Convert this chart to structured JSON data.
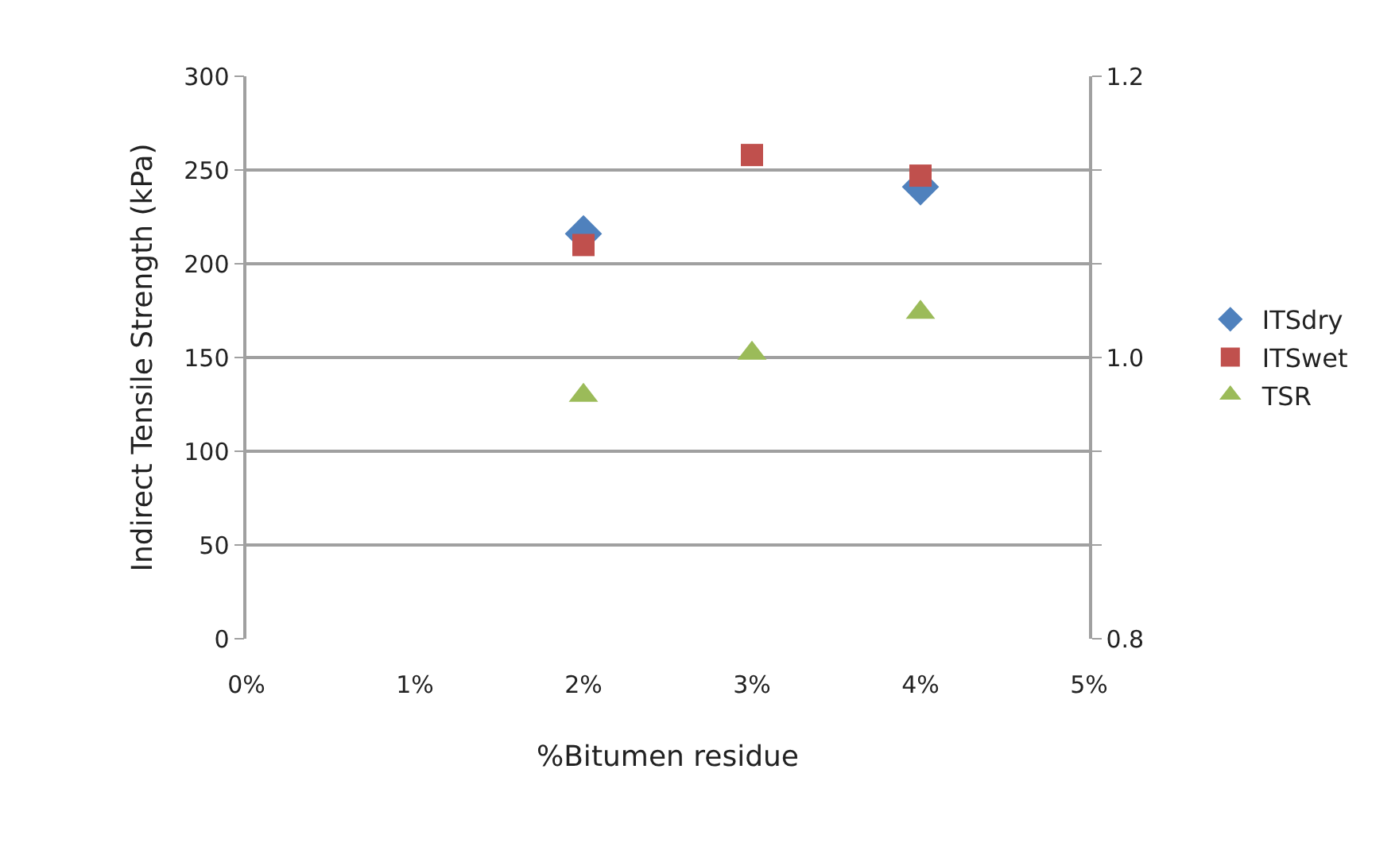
{
  "chart_data": {
    "type": "scatter",
    "xlabel": "%Bitumen residue",
    "ylabel": "Indirect Tensile Strength (kPa)",
    "x": [
      0.02,
      0.03,
      0.04
    ],
    "series": [
      {
        "name": "ITSdry",
        "color": "#4f81bd",
        "marker": "diamond",
        "values": [
          216,
          null,
          241
        ]
      },
      {
        "name": "ITSwet",
        "color": "#c0504d",
        "marker": "square",
        "values": [
          210,
          258,
          247
        ]
      },
      {
        "name": "TSR",
        "color": "#9bbb59",
        "marker": "triangle",
        "axis": "y2",
        "values": [
          0.973,
          1.003,
          1.032
        ]
      }
    ],
    "xlim": [
      0,
      0.05
    ],
    "xticks": [
      {
        "value": 0,
        "label": "0%"
      },
      {
        "value": 0.01,
        "label": "1%"
      },
      {
        "value": 0.02,
        "label": "2%"
      },
      {
        "value": 0.03,
        "label": "3%"
      },
      {
        "value": 0.04,
        "label": "4%"
      },
      {
        "value": 0.05,
        "label": "5%"
      }
    ],
    "ylim": [
      0,
      300
    ],
    "yticks": [
      0,
      50,
      100,
      150,
      200,
      250,
      300
    ],
    "y2lim": [
      0.8,
      1.2
    ],
    "y2ticks": [
      {
        "value": 0.8,
        "label": "0.8"
      },
      {
        "value": 0.8667,
        "label": null
      },
      {
        "value": 0.9333,
        "label": null
      },
      {
        "value": 1.0,
        "label": "1.0"
      },
      {
        "value": 1.0667,
        "label": null
      },
      {
        "value": 1.1333,
        "label": null
      },
      {
        "value": 1.2,
        "label": "1.2"
      }
    ],
    "grid": "y",
    "legend": "right"
  }
}
